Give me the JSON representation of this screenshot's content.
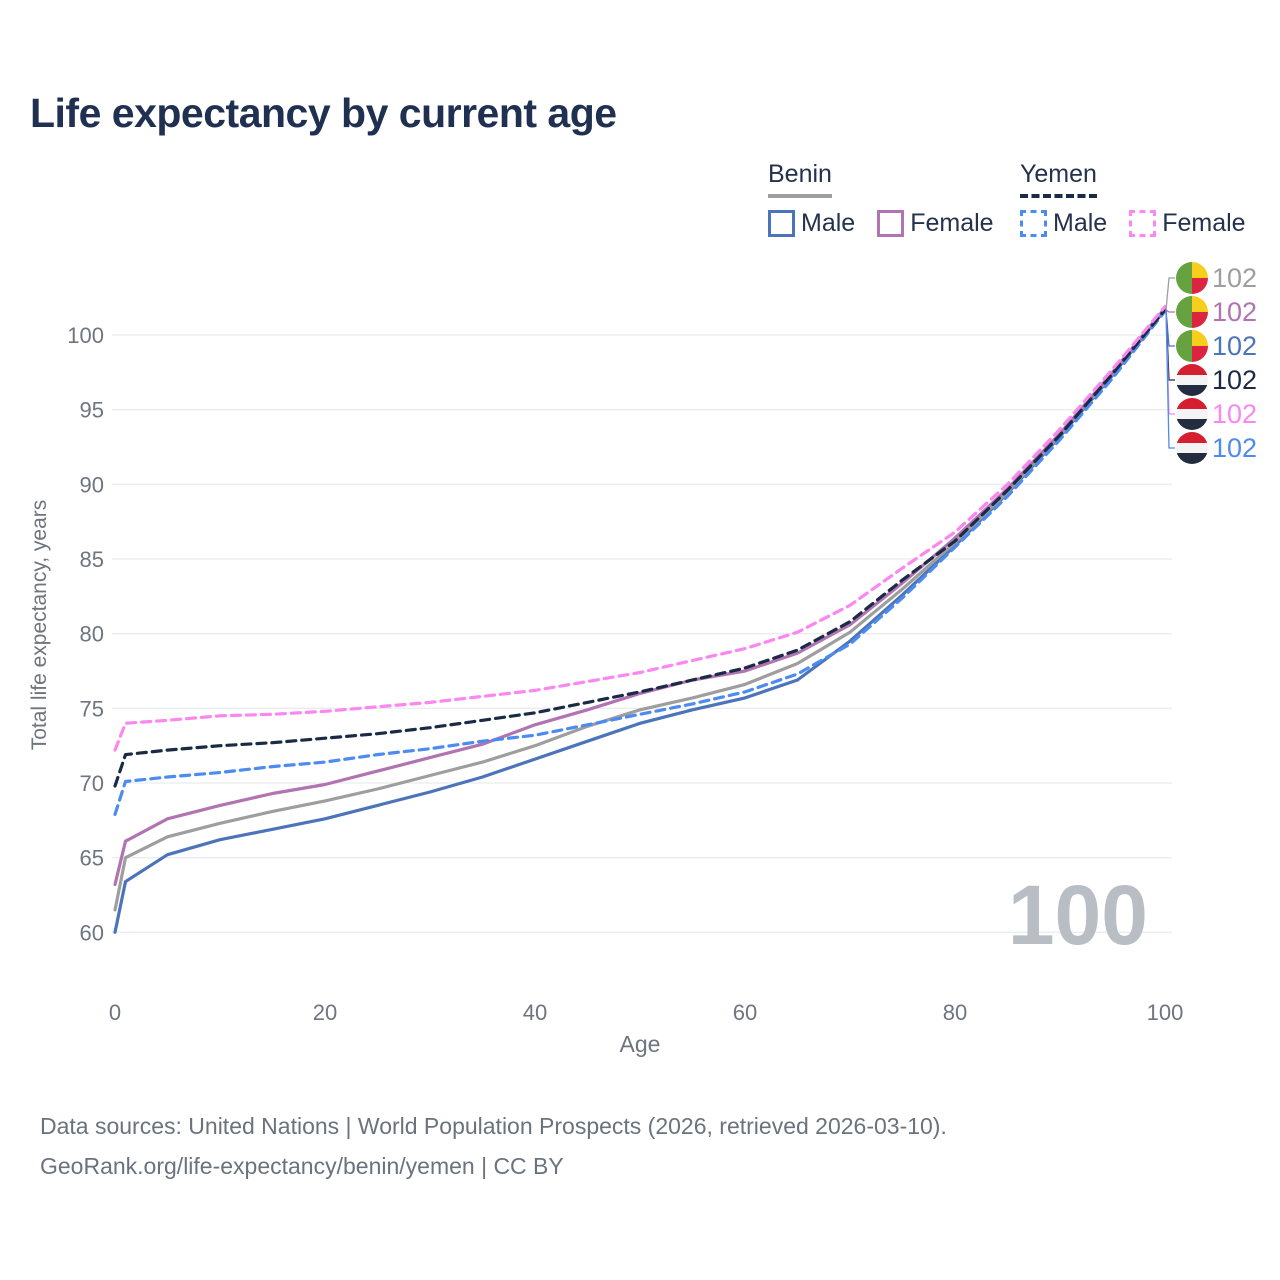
{
  "title": "Life expectancy by current age",
  "watermark": "100",
  "colors": {
    "title": "#1f3050",
    "text": "#25324b",
    "footer": "#6a737d",
    "axis_text": "#6e7580",
    "axis_title": "#6e757d",
    "gridline": "#eaecef",
    "watermark": "#b9bdc4",
    "benin_male": "#4b74ba",
    "benin_female": "#b173b1",
    "benin_all": "#9e9e9e",
    "yemen_male": "#4c8bf0",
    "yemen_female": "#fb87f0",
    "yemen_all": "#1c2b45",
    "benin_flag": {
      "green": "#67a240",
      "yellow": "#f7ce1b",
      "red": "#dc2340"
    },
    "yemen_flag": {
      "red": "#d51f30",
      "white": "#f4f4f4",
      "black": "#232c40"
    }
  },
  "legend": {
    "groups": [
      {
        "country": "Benin",
        "line_style": "solid",
        "color_key": "benin_all",
        "items": [
          {
            "label": "Male",
            "color_key": "benin_male",
            "line_style": "solid"
          },
          {
            "label": "Female",
            "color_key": "benin_female",
            "line_style": "solid"
          }
        ]
      },
      {
        "country": "Yemen",
        "line_style": "dashed",
        "color_key": "yemen_all",
        "items": [
          {
            "label": "Male",
            "color_key": "yemen_male",
            "line_style": "dashed"
          },
          {
            "label": "Female",
            "color_key": "yemen_female",
            "line_style": "dashed"
          }
        ]
      }
    ]
  },
  "chart_data": {
    "type": "line",
    "title": "Life expectancy by current age",
    "xlabel": "Age",
    "ylabel": "Total life expectancy, years",
    "xlim": [
      0,
      100
    ],
    "ylim": [
      60,
      100
    ],
    "x_ticks": [
      0,
      20,
      40,
      60,
      80,
      100
    ],
    "y_ticks": [
      60,
      65,
      70,
      75,
      80,
      85,
      90,
      95,
      100
    ],
    "grid": true,
    "legend_position": "top-right",
    "x": [
      0,
      1,
      5,
      10,
      15,
      20,
      25,
      30,
      35,
      40,
      45,
      50,
      55,
      60,
      65,
      70,
      75,
      80,
      85,
      90,
      95,
      100
    ],
    "series": [
      {
        "id": "benin-male",
        "name": "Benin Male",
        "country": "Benin",
        "sex": "Male",
        "color_key": "benin_male",
        "dashed": false,
        "end_label": "102",
        "values": [
          60.0,
          63.4,
          65.2,
          66.2,
          66.9,
          67.6,
          68.5,
          69.4,
          70.4,
          71.6,
          72.8,
          74.0,
          74.9,
          75.7,
          76.9,
          79.5,
          82.6,
          85.9,
          89.4,
          93.2,
          97.3,
          101.7
        ]
      },
      {
        "id": "benin-all",
        "name": "Benin Both sexes",
        "country": "Benin",
        "sex": "Both",
        "color_key": "benin_all",
        "dashed": false,
        "end_label": "102",
        "values": [
          61.5,
          65.0,
          66.4,
          67.3,
          68.1,
          68.8,
          69.6,
          70.5,
          71.4,
          72.5,
          73.8,
          74.9,
          75.7,
          76.6,
          78.0,
          80.1,
          83.0,
          86.1,
          89.5,
          93.3,
          97.4,
          101.7
        ]
      },
      {
        "id": "benin-female",
        "name": "Benin Female",
        "country": "Benin",
        "sex": "Female",
        "color_key": "benin_female",
        "dashed": false,
        "end_label": "102",
        "values": [
          63.2,
          66.1,
          67.6,
          68.5,
          69.3,
          69.9,
          70.8,
          71.7,
          72.6,
          73.9,
          74.9,
          76.0,
          76.9,
          77.5,
          78.7,
          80.6,
          83.4,
          86.4,
          89.7,
          93.4,
          97.5,
          101.8
        ]
      },
      {
        "id": "yemen-male",
        "name": "Yemen Male",
        "country": "Yemen",
        "sex": "Male",
        "color_key": "yemen_male",
        "dashed": true,
        "end_label": "102",
        "values": [
          67.9,
          70.1,
          70.4,
          70.7,
          71.1,
          71.4,
          71.9,
          72.3,
          72.8,
          73.2,
          73.9,
          74.6,
          75.3,
          76.1,
          77.3,
          79.3,
          82.4,
          85.8,
          89.2,
          93.0,
          97.1,
          101.6
        ]
      },
      {
        "id": "yemen-all",
        "name": "Yemen Both sexes",
        "country": "Yemen",
        "sex": "Both",
        "color_key": "yemen_all",
        "dashed": true,
        "end_label": "102",
        "values": [
          69.8,
          71.9,
          72.2,
          72.5,
          72.7,
          73.0,
          73.3,
          73.7,
          74.2,
          74.7,
          75.4,
          76.1,
          76.9,
          77.7,
          78.9,
          80.8,
          83.6,
          86.2,
          89.6,
          93.3,
          97.4,
          101.7
        ]
      },
      {
        "id": "yemen-female",
        "name": "Yemen Female",
        "country": "Yemen",
        "sex": "Female",
        "color_key": "yemen_female",
        "dashed": true,
        "end_label": "102",
        "values": [
          72.2,
          74.0,
          74.2,
          74.5,
          74.6,
          74.8,
          75.1,
          75.4,
          75.8,
          76.2,
          76.8,
          77.4,
          78.2,
          79.0,
          80.1,
          81.9,
          84.4,
          86.8,
          90.0,
          93.7,
          97.7,
          101.9
        ]
      }
    ]
  },
  "right_labels": [
    {
      "flag": "benin",
      "series": "Benin Both sexes",
      "text": "102",
      "color_key": "benin_all"
    },
    {
      "flag": "benin",
      "series": "Benin Female",
      "text": "102",
      "color_key": "benin_female"
    },
    {
      "flag": "benin",
      "series": "Benin Male",
      "text": "102",
      "color_key": "benin_male"
    },
    {
      "flag": "yemen",
      "series": "Yemen Both sexes",
      "text": "102",
      "color_key": "yemen_all"
    },
    {
      "flag": "yemen",
      "series": "Yemen Female",
      "text": "102",
      "color_key": "yemen_female"
    },
    {
      "flag": "yemen",
      "series": "Yemen Male",
      "text": "102",
      "color_key": "yemen_male"
    }
  ],
  "footer": {
    "line1": "Data sources: United Nations | World Population Prospects (2026, retrieved 2026-03-10).",
    "line2": "GeoRank.org/life-expectancy/benin/yemen | CC BY"
  }
}
